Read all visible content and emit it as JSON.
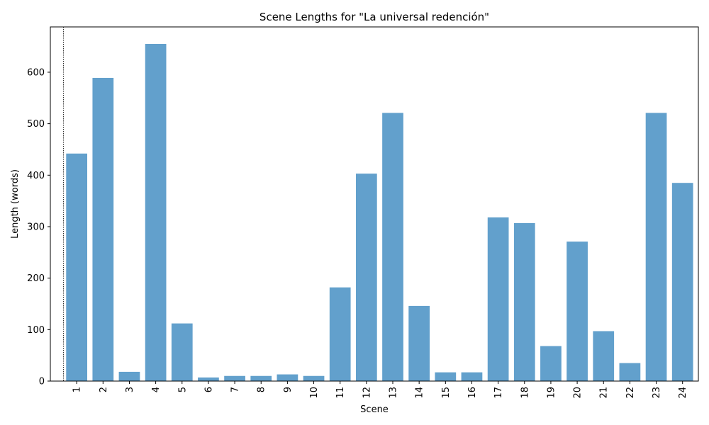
{
  "chart_data": {
    "type": "bar",
    "title": "Scene Lengths for \"La universal redención\"",
    "xlabel": "Scene",
    "ylabel": "Length (words)",
    "categories": [
      "1",
      "2",
      "3",
      "4",
      "5",
      "6",
      "7",
      "8",
      "9",
      "10",
      "11",
      "12",
      "13",
      "14",
      "15",
      "16",
      "17",
      "18",
      "19",
      "20",
      "21",
      "22",
      "23",
      "24"
    ],
    "values": [
      442,
      589,
      18,
      655,
      112,
      7,
      10,
      10,
      13,
      10,
      182,
      403,
      521,
      146,
      17,
      17,
      318,
      307,
      68,
      271,
      97,
      35,
      521,
      385
    ],
    "yticks": [
      0,
      100,
      200,
      300,
      400,
      500,
      600
    ],
    "ylim": [
      0,
      688
    ],
    "bar_color": "#62a0cc",
    "grid": false,
    "legend": "none",
    "marker_line": "dotted vertical line left of scene 1"
  }
}
